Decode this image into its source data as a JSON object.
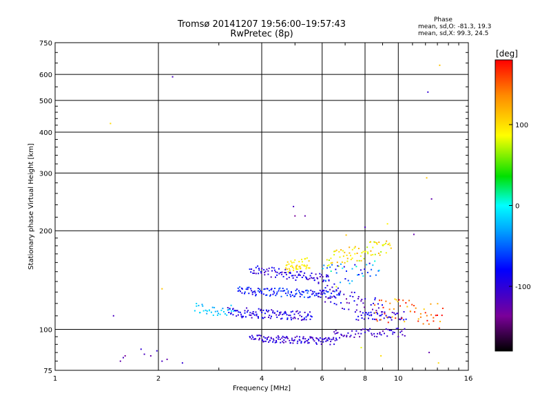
{
  "header": {
    "title_line1": "Tromsø 20141207 19:56:00–19:57:43",
    "title_line2": "RwPretec (8p)"
  },
  "phase_box": {
    "title": "Phase",
    "stat_o": "mean, sd,O: -81.3, 19.3",
    "stat_x": "mean, sd,X:  99.3, 24.5"
  },
  "chart_data": {
    "type": "scatter",
    "xlabel": "Frequency [MHz]",
    "ylabel": "Stationary phase Virtual Height [km]",
    "xscale": "log",
    "yscale": "log",
    "xlim": [
      1,
      16
    ],
    "ylim": [
      75,
      750
    ],
    "xticks": [
      1,
      2,
      4,
      6,
      8,
      10,
      16
    ],
    "yticks": [
      75,
      100,
      200,
      300,
      400,
      500,
      600,
      750
    ],
    "grid_x": [
      2,
      4,
      6,
      8,
      10
    ],
    "grid_y": [
      100,
      200,
      300,
      400,
      500,
      600
    ],
    "colorbar": {
      "label": "[deg]",
      "range": [
        -180,
        180
      ],
      "ticks": [
        100,
        0,
        -100
      ]
    },
    "series": [
      {
        "points": [
          [
            1.45,
            425,
            100
          ],
          [
            2.2,
            590,
            -110
          ],
          [
            12.2,
            530,
            -100
          ],
          [
            13.2,
            640,
            110
          ],
          [
            12.1,
            290,
            110
          ],
          [
            12.5,
            250,
            -120
          ],
          [
            4.95,
            237,
            -110
          ],
          [
            5.0,
            222,
            -130
          ],
          [
            5.35,
            222,
            -120
          ],
          [
            1.48,
            110,
            -110
          ],
          [
            2.05,
            133,
            110
          ],
          [
            1.55,
            80,
            -120
          ],
          [
            1.58,
            82,
            -110
          ],
          [
            1.6,
            83,
            -130
          ],
          [
            1.78,
            87,
            -100
          ],
          [
            1.82,
            84,
            -110
          ],
          [
            1.9,
            83,
            -120
          ],
          [
            1.98,
            86,
            -100
          ],
          [
            2.05,
            80,
            -110
          ],
          [
            2.12,
            81,
            -120
          ],
          [
            2.35,
            79,
            -100
          ],
          [
            7.05,
            194,
            110
          ],
          [
            7.2,
            178,
            120
          ],
          [
            8.0,
            205,
            -110
          ],
          [
            8.3,
            185,
            120
          ],
          [
            9.3,
            210,
            90
          ],
          [
            11.1,
            195,
            -120
          ],
          [
            6.55,
            97,
            -110
          ],
          [
            6.6,
            135,
            80
          ],
          [
            7.8,
            88,
            80
          ],
          [
            8.9,
            83,
            100
          ],
          [
            12.3,
            85,
            -120
          ],
          [
            13.1,
            79,
            100
          ]
        ]
      }
    ]
  },
  "bands": [
    {
      "f1": 2.55,
      "f2": 3.3,
      "h1": 116,
      "h2": 113,
      "n": 34,
      "sp": 0.045,
      "c": -20,
      "cs": 15
    },
    {
      "f1": 3.2,
      "f2": 5.6,
      "h1": 113,
      "h2": 110,
      "n": 110,
      "sp": 0.035,
      "c": -95,
      "cs": 20
    },
    {
      "f1": 3.4,
      "f2": 6.8,
      "h1": 131,
      "h2": 128,
      "n": 130,
      "sp": 0.03,
      "c": -75,
      "cs": 25
    },
    {
      "f1": 3.7,
      "f2": 6.3,
      "h1": 152,
      "h2": 142,
      "n": 90,
      "sp": 0.035,
      "c": -95,
      "cs": 20
    },
    {
      "f1": 3.7,
      "f2": 6.6,
      "h1": 94,
      "h2": 92,
      "n": 120,
      "sp": 0.025,
      "c": -100,
      "cs": 15
    },
    {
      "f1": 4.7,
      "f2": 5.5,
      "h1": 155,
      "h2": 160,
      "n": 45,
      "sp": 0.04,
      "c": 95,
      "cs": 15
    },
    {
      "f1": 5.8,
      "f2": 9.0,
      "h1": 130,
      "h2": 115,
      "n": 60,
      "sp": 0.07,
      "c": -100,
      "cs": 25
    },
    {
      "f1": 6.2,
      "f2": 9.5,
      "h1": 162,
      "h2": 180,
      "n": 70,
      "sp": 0.06,
      "c": 95,
      "cs": 30
    },
    {
      "f1": 6.5,
      "f2": 10.5,
      "h1": 97,
      "h2": 98,
      "n": 55,
      "sp": 0.03,
      "c": -105,
      "cs": 15
    },
    {
      "f1": 7.5,
      "f2": 10.5,
      "h1": 110,
      "h2": 110,
      "n": 45,
      "sp": 0.03,
      "c": -95,
      "cs": 20
    },
    {
      "f1": 8.5,
      "f2": 13.5,
      "h1": 115,
      "h2": 110,
      "n": 55,
      "sp": 0.09,
      "c": 140,
      "cs": 40
    },
    {
      "f1": 6.0,
      "f2": 8.8,
      "h1": 145,
      "h2": 150,
      "n": 40,
      "sp": 0.08,
      "c": -40,
      "cs": 60
    }
  ]
}
